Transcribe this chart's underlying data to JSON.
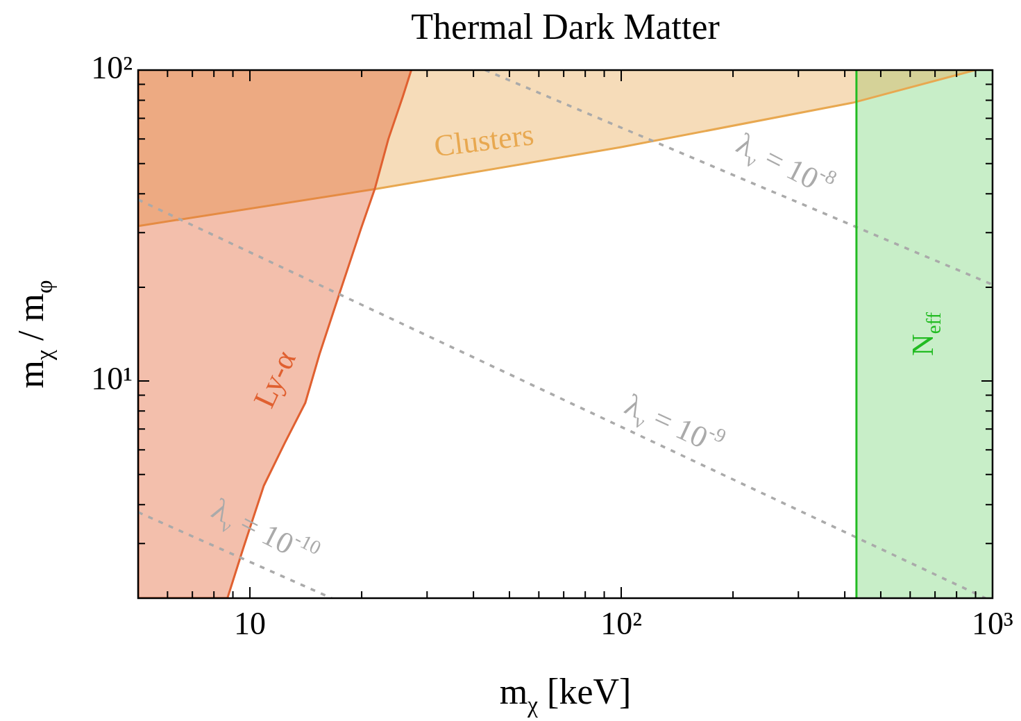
{
  "chart_data": {
    "type": "area",
    "title": "Thermal Dark Matter",
    "xlabel": "m$_{χ}$ [keV]",
    "ylabel": "m$_{χ}$ / m$_{φ}$",
    "log": "xy",
    "grid": false,
    "legend": false,
    "xlim": [
      5,
      1000
    ],
    "ylim": [
      2,
      100
    ],
    "xticks": [
      {
        "value": 5,
        "label": null
      },
      {
        "value": 6,
        "label": null
      },
      {
        "value": 7,
        "label": null
      },
      {
        "value": 8,
        "label": null
      },
      {
        "value": 9,
        "label": null
      },
      {
        "value": 10,
        "label": "10"
      },
      {
        "value": 20,
        "label": null
      },
      {
        "value": 30,
        "label": null
      },
      {
        "value": 40,
        "label": null
      },
      {
        "value": 50,
        "label": null
      },
      {
        "value": 60,
        "label": null
      },
      {
        "value": 70,
        "label": null
      },
      {
        "value": 80,
        "label": null
      },
      {
        "value": 90,
        "label": null
      },
      {
        "value": 100,
        "label": "10²"
      },
      {
        "value": 200,
        "label": null
      },
      {
        "value": 300,
        "label": null
      },
      {
        "value": 400,
        "label": null
      },
      {
        "value": 500,
        "label": null
      },
      {
        "value": 600,
        "label": null
      },
      {
        "value": 700,
        "label": null
      },
      {
        "value": 800,
        "label": null
      },
      {
        "value": 900,
        "label": null
      },
      {
        "value": 1000,
        "label": "10³"
      }
    ],
    "yticks": [
      {
        "value": 2,
        "label": null
      },
      {
        "value": 3,
        "label": null
      },
      {
        "value": 4,
        "label": null
      },
      {
        "value": 5,
        "label": null
      },
      {
        "value": 6,
        "label": null
      },
      {
        "value": 7,
        "label": null
      },
      {
        "value": 8,
        "label": null
      },
      {
        "value": 9,
        "label": null
      },
      {
        "value": 10,
        "label": "10¹"
      },
      {
        "value": 20,
        "label": null
      },
      {
        "value": 30,
        "label": null
      },
      {
        "value": 40,
        "label": null
      },
      {
        "value": 50,
        "label": null
      },
      {
        "value": 60,
        "label": null
      },
      {
        "value": 70,
        "label": null
      },
      {
        "value": 80,
        "label": null
      },
      {
        "value": 90,
        "label": null
      },
      {
        "value": 100,
        "label": "10²"
      }
    ],
    "series": [
      {
        "type": "area",
        "color": "#e8a850",
        "x": [
          5,
          5,
          22,
          100,
          420,
          898
        ],
        "values": [
          100,
          31.5,
          41.5,
          56.5,
          78.5,
          100
        ]
      },
      {
        "type": "area",
        "color": "#e06030",
        "x": [
          5,
          5,
          8.7,
          9.6,
          10.9,
          12.4,
          14.1,
          15.4,
          17.5,
          19.9,
          21.7,
          23.6,
          25.8,
          27.2
        ],
        "values": [
          100,
          2,
          2,
          2.9,
          4.6,
          6.3,
          8.5,
          12.2,
          19.4,
          30.8,
          41.5,
          60,
          82,
          100
        ]
      },
      {
        "type": "line",
        "color": "#aaaaaa",
        "line_style": "dashed",
        "x": [
          43,
          1000
        ],
        "values": [
          100,
          20.4
        ]
      },
      {
        "type": "line",
        "color": "#aaaaaa",
        "line_style": "dashed",
        "x": [
          5,
          957
        ],
        "values": [
          38.3,
          2
        ]
      },
      {
        "type": "line",
        "color": "#aaaaaa",
        "line_style": "dashed",
        "x": [
          5,
          16.6
        ],
        "values": [
          3.78,
          2
        ]
      }
    ],
    "ref_lines": [
      {
        "axis": "x",
        "value": 430,
        "color": "#22bb22"
      }
    ],
    "bands": [
      {
        "axis": "x",
        "from": 430,
        "to": 1000,
        "label": "N$_{eff}$",
        "color": "#22bb22"
      }
    ],
    "annotations": [
      "Clusters",
      "Ly-α",
      "λ$_{ν}$ = 10$^{-8}$",
      "λ$_{ν}$ = 10$^{-9}$",
      "λ$_{ν}$ = 10$^{-10}$"
    ]
  }
}
